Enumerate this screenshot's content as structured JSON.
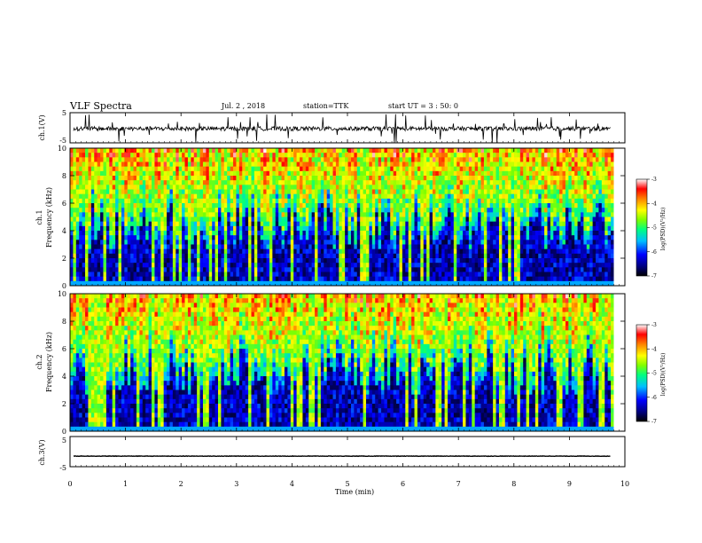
{
  "header": {
    "title": "VLF Spectra",
    "date": "Jul. 2 , 2018",
    "station": "station=TTK",
    "start": "start UT = 3 : 50: 0"
  },
  "chart_data": {
    "type": "heatmap",
    "xlabel": "Time (min)",
    "x_ticks": [
      "0",
      "1",
      "2",
      "3",
      "4",
      "5",
      "6",
      "7",
      "8",
      "9",
      "10"
    ],
    "xlim": [
      0,
      10
    ],
    "data_end_min": 9.8,
    "panels": [
      {
        "id": "ch1_waveform",
        "type": "line",
        "ylabel": "ch.1(V)",
        "ylim": [
          -5,
          5
        ],
        "y_ticks": [
          "5",
          "-5"
        ],
        "level": -0.3
      },
      {
        "id": "ch1_spectrogram",
        "type": "heatmap",
        "ylabel_top": "ch.1",
        "ylabel": "Frequency (kHz)",
        "ylim": [
          0,
          10
        ],
        "y_ticks": [
          "0",
          "2",
          "4",
          "6",
          "8",
          "10"
        ],
        "colorbar": {
          "label": "log(PSD)(V²/Hz)",
          "ticks": [
            "-3",
            "-4",
            "-5",
            "-6",
            "-7"
          ],
          "range": [
            -7,
            -3
          ]
        }
      },
      {
        "id": "ch2_spectrogram",
        "type": "heatmap",
        "ylabel_top": "ch.2",
        "ylabel": "Frequency (kHz)",
        "ylim": [
          0,
          10
        ],
        "y_ticks": [
          "0",
          "2",
          "4",
          "6",
          "8",
          "10"
        ],
        "colorbar": {
          "label": "log(PSD)(V²/Hz)",
          "ticks": [
            "-3",
            "-4",
            "-5",
            "-6",
            "-7"
          ],
          "range": [
            -7,
            -3
          ]
        }
      },
      {
        "id": "ch3_waveform",
        "type": "line",
        "ylabel": "ch.3(V)",
        "ylim": [
          -5,
          5
        ],
        "y_ticks": [
          "5",
          "-5"
        ],
        "level": -1.5
      }
    ],
    "colormap": [
      "#000000",
      "#000080",
      "#0000ff",
      "#00bfff",
      "#00ff80",
      "#7fff00",
      "#ffff00",
      "#ff8000",
      "#ff0000",
      "#ffffff"
    ]
  }
}
